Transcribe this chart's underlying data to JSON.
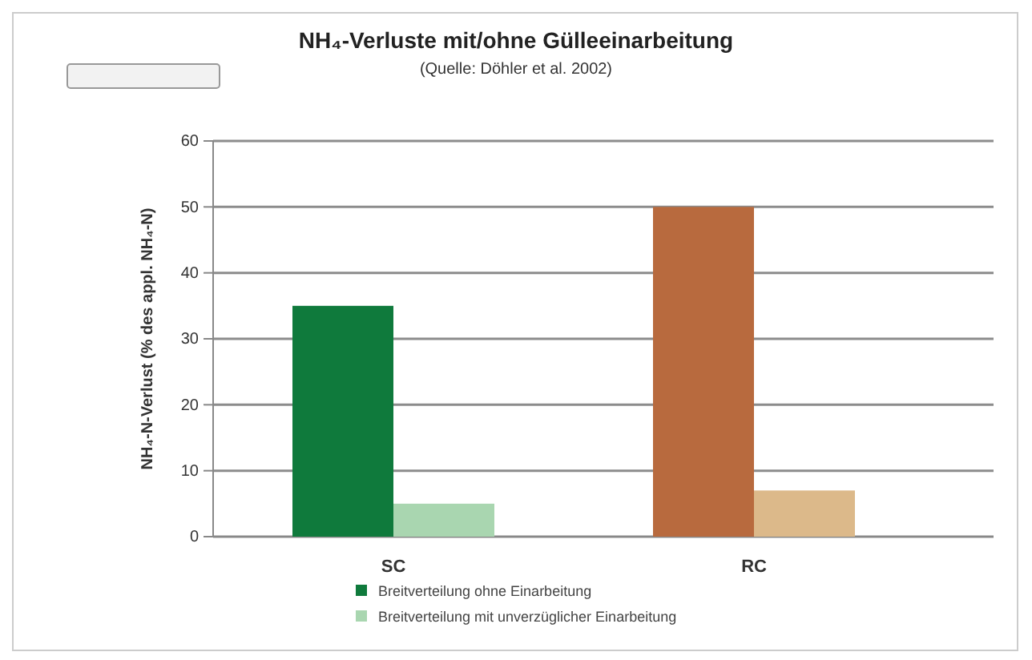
{
  "chart_data": {
    "type": "bar",
    "title": "NH₄-Verluste mit/ohne Gülleeinarbeitung",
    "subtitle": "(Quelle: Döhler et al. 2002)",
    "ylabel": "NH₄-N-Verlust (% des appl. NH₄-N)",
    "categories": [
      "SC",
      "RC"
    ],
    "series": [
      {
        "name": "Breitverteilung ohne Einarbeitung",
        "color": "#0f7a3c",
        "colors": [
          "#0f7a3c",
          "#b86a3e"
        ],
        "values": [
          35,
          50
        ]
      },
      {
        "name": "Breitverteilung mit unverzüglicher Einarbeitung",
        "color": "#a9d6b0",
        "colors": [
          "#a9d6b0",
          "#dcb98a"
        ],
        "values": [
          5,
          7
        ]
      }
    ],
    "ylim": [
      0,
      60
    ],
    "yticks": [
      0,
      10,
      20,
      30,
      40,
      50,
      60
    ],
    "grid": "y",
    "legend": "bottom"
  }
}
